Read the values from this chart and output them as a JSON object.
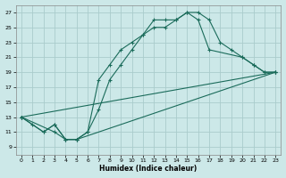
{
  "xlabel": "Humidex (Indice chaleur)",
  "bg_color": "#cce8e8",
  "grid_color": "#aacccc",
  "line_color": "#1a6b5a",
  "xlim": [
    -0.5,
    23.5
  ],
  "ylim": [
    8,
    28
  ],
  "xticks": [
    0,
    1,
    2,
    3,
    4,
    5,
    6,
    7,
    8,
    9,
    10,
    11,
    12,
    13,
    14,
    15,
    16,
    17,
    18,
    19,
    20,
    21,
    22,
    23
  ],
  "yticks": [
    9,
    11,
    13,
    15,
    17,
    19,
    21,
    23,
    25,
    27
  ],
  "line1_x": [
    0,
    1,
    2,
    3,
    4,
    5,
    6,
    7,
    8,
    9,
    10,
    11,
    12,
    13,
    14,
    15,
    16,
    17,
    18,
    19,
    20,
    21,
    22,
    23
  ],
  "line1_y": [
    13,
    12,
    11,
    12,
    10,
    10,
    11,
    18,
    20,
    22,
    23,
    24,
    26,
    26,
    26,
    27,
    27,
    26,
    23,
    22,
    21,
    20,
    19,
    19
  ],
  "line2_x": [
    0,
    2,
    3,
    4,
    5,
    6,
    7,
    8,
    9,
    10,
    11,
    12,
    13,
    14,
    15,
    16,
    17,
    20,
    21,
    22,
    23
  ],
  "line2_y": [
    13,
    11,
    12,
    10,
    10,
    11,
    14,
    18,
    20,
    22,
    24,
    25,
    25,
    26,
    27,
    26,
    22,
    21,
    20,
    19,
    19
  ],
  "line3_x": [
    0,
    23
  ],
  "line3_y": [
    13,
    19
  ],
  "line4_x": [
    0,
    3,
    4,
    5,
    23
  ],
  "line4_y": [
    13,
    11,
    10,
    10,
    19
  ]
}
